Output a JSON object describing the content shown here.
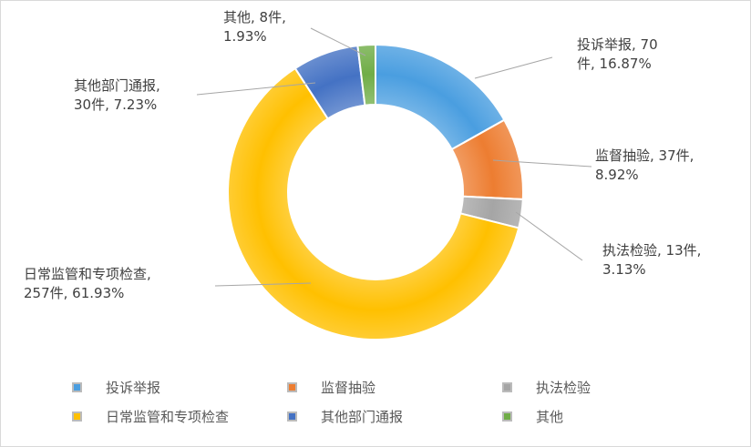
{
  "chart_data": {
    "type": "pie",
    "variant": "donut",
    "categories": [
      "投诉举报",
      "监督抽验",
      "执法检验",
      "日常监管和专项检查",
      "其他部门通报",
      "其他"
    ],
    "values": [
      70,
      37,
      13,
      257,
      30,
      8
    ],
    "percentages": [
      "16.87%",
      "8.92%",
      "3.13%",
      "61.93%",
      "7.23%",
      "1.93%"
    ],
    "colors": [
      "#4a9ee0",
      "#ed7d31",
      "#a5a5a5",
      "#ffc000",
      "#4472c4",
      "#70ad47"
    ],
    "data_labels": [
      [
        "投诉举报, 70",
        "件, 16.87%"
      ],
      [
        "监督抽验, 37件,",
        "8.92%"
      ],
      [
        "执法检验, 13件,",
        "3.13%"
      ],
      [
        "日常监管和专项检查,",
        "257件, 61.93%"
      ],
      [
        "其他部门通报,",
        "30件, 7.23%"
      ],
      [
        "其他, 8件,",
        "1.93%"
      ]
    ],
    "legend_position": "bottom"
  }
}
